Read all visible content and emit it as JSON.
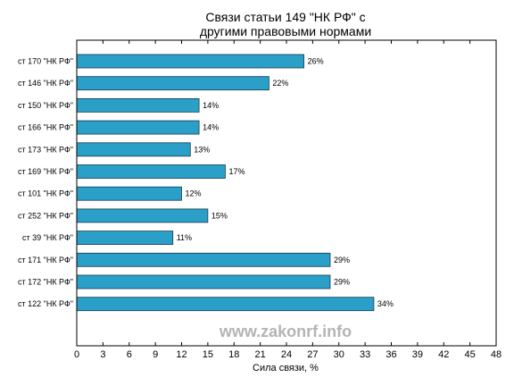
{
  "chart_data": {
    "type": "bar",
    "orientation": "horizontal",
    "title": [
      "Связи статьи 149 \"НК РФ\" с",
      "другими правовыми нормами"
    ],
    "xlabel": "Сила связи, %",
    "ylabel": "",
    "xlim": [
      0,
      48
    ],
    "xticks": [
      0,
      3,
      6,
      9,
      12,
      15,
      18,
      21,
      24,
      27,
      30,
      33,
      36,
      39,
      42,
      45,
      48
    ],
    "grid": false,
    "categories": [
      "ст 170 \"НК РФ\"",
      "ст 146 \"НК РФ\"",
      "ст 150 \"НК РФ\"",
      "ст 166 \"НК РФ\"",
      "ст 173 \"НК РФ\"",
      "ст 169 \"НК РФ\"",
      "ст 101 \"НК РФ\"",
      "ст 252 \"НК РФ\"",
      "ст 39 \"НК РФ\"",
      "ст 171 \"НК РФ\"",
      "ст 172 \"НК РФ\"",
      "ст 122 \"НК РФ\""
    ],
    "values": [
      26,
      22,
      14,
      14,
      13,
      17,
      12,
      15,
      11,
      29,
      29,
      34
    ],
    "value_labels": [
      "26%",
      "22%",
      "14%",
      "14%",
      "13%",
      "17%",
      "12%",
      "15%",
      "11%",
      "29%",
      "29%",
      "34%"
    ],
    "bar_color": "#2a9fc8",
    "bar_edge_color": "#1a3a4a",
    "watermark": "www.zakonrf.info",
    "watermark_color": "#b4b4b4"
  }
}
